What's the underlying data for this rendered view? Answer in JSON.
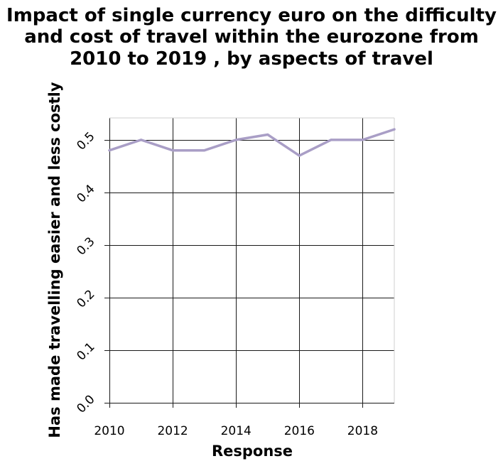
{
  "chart_data": {
    "type": "line",
    "title_lines": [
      "Impact of single currency euro on the difficulty",
      "and cost of travel within the eurozone from",
      "2010 to 2019 , by aspects of travel"
    ],
    "xlabel": "Response",
    "ylabel": "Has made travelling easier and less costly",
    "x": [
      2010,
      2011,
      2012,
      2013,
      2014,
      2015,
      2016,
      2017,
      2018,
      2019
    ],
    "series": [
      {
        "values": [
          0.48,
          0.5,
          0.48,
          0.48,
          0.5,
          0.51,
          0.47,
          0.5,
          0.5,
          0.52
        ],
        "color": "#a99ec6"
      }
    ],
    "xlim": [
      2010,
      2019
    ],
    "ylim": [
      0.0,
      0.5417
    ],
    "x_ticks": [
      2010,
      2012,
      2014,
      2016,
      2018
    ],
    "x_tick_labels": [
      "2010",
      "2012",
      "2014",
      "2016",
      "2018"
    ],
    "y_ticks": [
      0.0,
      0.1,
      0.2,
      0.3,
      0.4,
      0.5
    ],
    "y_tick_labels": [
      "0.0",
      "0.1",
      "0.2",
      "0.3",
      "0.4",
      "0.5"
    ],
    "grid": true,
    "legend": "none"
  }
}
